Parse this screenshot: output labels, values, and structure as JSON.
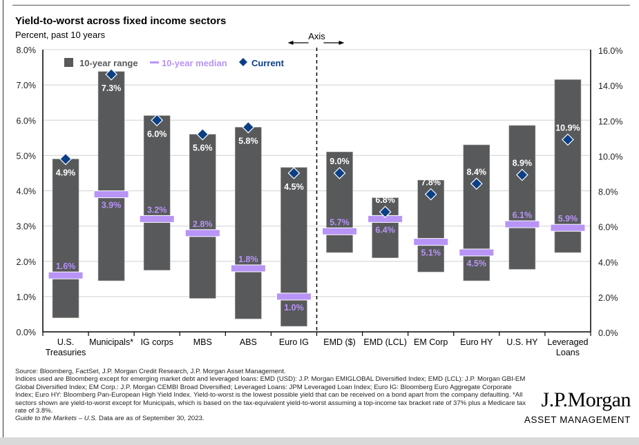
{
  "title": "Yield-to-worst across fixed income sectors",
  "subtitle": "Percent, past 10 years",
  "chart_data": {
    "type": "bar",
    "subtype": "floating-range-with-markers",
    "title": "Yield-to-worst across fixed income sectors",
    "subtitle": "Percent, past 10 years",
    "axis_divider_label": "Axis",
    "legend": {
      "placement": "top-left",
      "entries": [
        {
          "name": "10-year range",
          "color": "#58595b"
        },
        {
          "name": "10-year median",
          "color": "#b794f6"
        },
        {
          "name": "Current",
          "color": "#0b3f86"
        }
      ]
    },
    "colors": {
      "range": "#58595b",
      "median": "#b794f6",
      "median_label": "#b794f6",
      "current": "#0b3f86",
      "current_label": "#ffffff",
      "grid": "#d9d9d9"
    },
    "left_axis": {
      "ylim": [
        0,
        8
      ],
      "ticks": [
        "0.0%",
        "1.0%",
        "2.0%",
        "3.0%",
        "4.0%",
        "5.0%",
        "6.0%",
        "7.0%",
        "8.0%"
      ],
      "tick_values": [
        0,
        1,
        2,
        3,
        4,
        5,
        6,
        7,
        8
      ]
    },
    "right_axis": {
      "ylim": [
        0,
        16
      ],
      "ticks": [
        "0.0%",
        "2.0%",
        "4.0%",
        "6.0%",
        "8.0%",
        "10.0%",
        "12.0%",
        "14.0%",
        "16.0%"
      ],
      "tick_values": [
        0,
        2,
        4,
        6,
        8,
        10,
        12,
        14,
        16
      ]
    },
    "grid": true,
    "categories": [
      "U.S. Treasuries",
      "Municipals*",
      "IG corps",
      "MBS",
      "ABS",
      "Euro IG",
      "EMD ($)",
      "EMD (LCL)",
      "EM Corp",
      "Euro HY",
      "U.S. HY",
      "Leveraged Loans"
    ],
    "category_labels": [
      [
        "U.S.",
        "Treasuries"
      ],
      [
        "Municipals*"
      ],
      [
        "IG corps"
      ],
      [
        "MBS"
      ],
      [
        "ABS"
      ],
      [
        "Euro IG"
      ],
      [
        "EMD ($)"
      ],
      [
        "EMD (LCL)"
      ],
      [
        "EM Corp"
      ],
      [
        "Euro HY"
      ],
      [
        "U.S. HY"
      ],
      [
        "Leveraged",
        "Loans"
      ]
    ],
    "axis_assignment": [
      "left",
      "left",
      "left",
      "left",
      "left",
      "left",
      "right",
      "right",
      "right",
      "right",
      "right",
      "right"
    ],
    "series": [
      {
        "name": "10-year range low",
        "values": [
          0.4,
          1.45,
          1.75,
          0.95,
          0.37,
          0.16,
          4.5,
          4.2,
          3.4,
          2.9,
          3.55,
          4.5
        ]
      },
      {
        "name": "10-year range high",
        "values": [
          4.9,
          7.38,
          6.13,
          5.6,
          5.8,
          4.66,
          10.2,
          7.6,
          8.6,
          10.6,
          11.7,
          14.3
        ]
      },
      {
        "name": "10-year median",
        "values": [
          1.6,
          3.9,
          3.2,
          2.8,
          1.8,
          1.0,
          5.7,
          6.4,
          5.1,
          4.5,
          6.1,
          5.9
        ]
      },
      {
        "name": "Current",
        "values": [
          4.9,
          7.3,
          6.0,
          5.6,
          5.8,
          4.5,
          9.0,
          6.8,
          7.8,
          8.4,
          8.9,
          10.9
        ]
      }
    ],
    "median_labels": [
      "1.6%",
      "3.9%",
      "3.2%",
      "2.8%",
      "1.8%",
      "1.0%",
      "5.7%",
      "6.4%",
      "5.1%",
      "4.5%",
      "6.1%",
      "5.9%"
    ],
    "current_labels": [
      "4.9%",
      "7.3%",
      "6.0%",
      "5.6%",
      "5.8%",
      "4.5%",
      "9.0%",
      "6.8%",
      "7.8%",
      "8.4%",
      "8.9%",
      "10.9%"
    ],
    "median_label_position": [
      "above",
      "below",
      "above",
      "above",
      "above",
      "below",
      "above",
      "below",
      "below",
      "below",
      "above",
      "above"
    ],
    "current_label_position": [
      "below",
      "below",
      "below",
      "below",
      "below",
      "below",
      "above",
      "above",
      "above",
      "above",
      "above",
      "above"
    ]
  },
  "footnote": {
    "source": "Source: Bloomberg, FactSet, J.P. Morgan Credit Research, J.P. Morgan Asset Management.",
    "body": "Indices used are Bloomberg except for emerging market debt and leveraged loans: EMD (USD): J.P. Morgan EMIGLOBAL Diversified Index; EMD (LCL): J.P. Morgan GBI-EM Global Diversified Index; EM Corp.: J.P. Morgan CEMBI Broad Diversified; Leveraged Loans: JPM Leveraged Loan Index; Euro IG: Bloomberg Euro Aggregate Corporate Index; Euro HY: Bloomberg Pan-European High Yield Index. Yield-to-worst is the lowest possible yield that can be received on a bond apart from the company defaulting. *All sectors shown are yield-to-worst except for Municipals, which is based on the tax-equivalent yield-to-worst assuming a top-income tax bracket rate of 37% plus a Medicare tax rate of 3.8%.",
    "guide_italic": "Guide to the Markets – U.S.",
    "date_text": " Data are as of September 30, 2023."
  },
  "brand": {
    "name": "J.P.Morgan",
    "sub": "ASSET MANAGEMENT"
  }
}
